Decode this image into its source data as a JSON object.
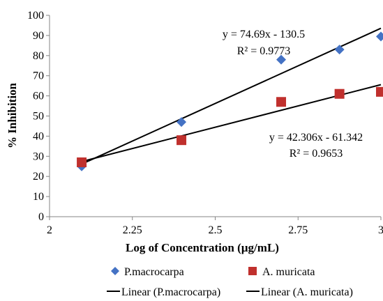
{
  "chart_data": {
    "type": "scatter",
    "xlabel": "Log of Concentration (µg/mL)",
    "ylabel": "% Inhibition",
    "xlim": [
      2,
      3
    ],
    "ylim": [
      0,
      100
    ],
    "x_ticks": [
      "2",
      "2.25",
      "2.5",
      "2.75",
      "3"
    ],
    "y_ticks": [
      "0",
      "10",
      "20",
      "30",
      "40",
      "50",
      "60",
      "70",
      "80",
      "90",
      "100"
    ],
    "grid": false,
    "legend_position": "bottom",
    "series": [
      {
        "name": "P.macrocarpa",
        "marker": "diamond",
        "color": "#4472C4",
        "x": [
          2.097,
          2.398,
          2.699,
          2.875,
          3.0
        ],
        "y": [
          25,
          47,
          78,
          83,
          89.5
        ]
      },
      {
        "name": "A. muricata",
        "marker": "square",
        "color": "#C0302D",
        "x": [
          2.097,
          2.398,
          2.699,
          2.875,
          3.0
        ],
        "y": [
          27,
          38,
          57,
          61,
          62
        ]
      }
    ],
    "trendlines": [
      {
        "name": "Linear (P.macrocarpa)",
        "slope": 74.69,
        "intercept": -130.5,
        "equation": "y = 74.69x - 130.5",
        "r2": "R² = 0.9773",
        "color": "#000000"
      },
      {
        "name": "Linear (A. muricata)",
        "slope": 42.306,
        "intercept": -61.342,
        "equation": "y = 42.306x - 61.342",
        "r2": "R² = 0.9653",
        "color": "#000000"
      }
    ]
  }
}
